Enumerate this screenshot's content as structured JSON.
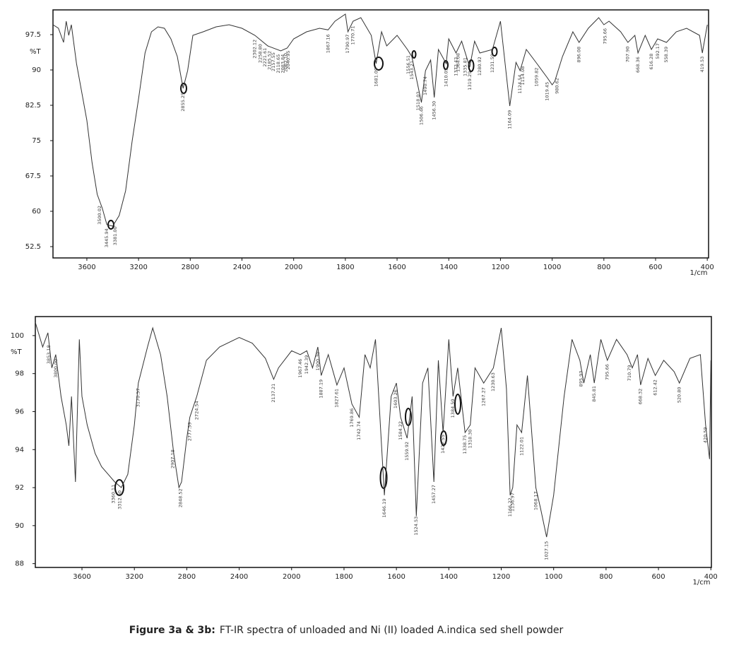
{
  "chart_data": [
    {
      "type": "line",
      "ylabel": "%T",
      "xlabel": "1/cm",
      "color": "#333333",
      "xlim": [
        3862,
        395
      ],
      "xticks": [
        3600,
        3200,
        2800,
        2400,
        2000,
        1800,
        1600,
        1400,
        1200,
        1000,
        800,
        600,
        400
      ],
      "ylim": [
        50.1,
        102.75
      ],
      "yticks": [
        52.5,
        60,
        67.5,
        75,
        82.5,
        90,
        97.5
      ],
      "x": [
        3862,
        3820,
        3780,
        3760,
        3740,
        3720,
        3680,
        3650,
        3600,
        3560,
        3520,
        3480,
        3445,
        3400,
        3350,
        3300,
        3250,
        3200,
        3150,
        3100,
        3050,
        3000,
        2950,
        2900,
        2855,
        2820,
        2780,
        2700,
        2600,
        2500,
        2400,
        2300,
        2200,
        2100,
        2050,
        2000,
        1950,
        1900,
        1867,
        1840,
        1800,
        1790,
        1770,
        1740,
        1700,
        1681,
        1660,
        1640,
        1600,
        1560,
        1543,
        1520,
        1506,
        1490,
        1470,
        1456,
        1440,
        1410,
        1400,
        1372,
        1350,
        1319,
        1300,
        1280,
        1231,
        1200,
        1185,
        1164,
        1140,
        1124,
        1100,
        1059,
        1019,
        1000,
        990,
        960,
        920,
        896,
        860,
        820,
        800,
        780,
        735,
        707,
        680,
        668,
        640,
        616,
        592,
        558,
        520,
        480,
        430,
        419,
        400
      ],
      "values": [
        99.6,
        98.85,
        95.85,
        100.35,
        97.35,
        99.6,
        91.35,
        86.85,
        79.35,
        70.35,
        63.6,
        60.6,
        57.15,
        56.85,
        59.1,
        64.35,
        74.85,
        83.85,
        93.6,
        98.1,
        99.15,
        98.85,
        96.6,
        92.85,
        86.1,
        89.85,
        97.35,
        98.1,
        99.15,
        99.6,
        98.85,
        97.35,
        95.1,
        94.05,
        94.65,
        96.6,
        98.1,
        98.85,
        98.5,
        100.35,
        101.85,
        98.1,
        100.35,
        101.1,
        97.35,
        91.35,
        98.1,
        95.1,
        97.35,
        94.35,
        92.85,
        86.85,
        83.1,
        89.85,
        92.1,
        84.15,
        94.35,
        91.35,
        96.6,
        93.6,
        96.1,
        90.6,
        96.1,
        93.6,
        94.35,
        100.35,
        92.85,
        82.35,
        91.6,
        89.85,
        94.35,
        91.35,
        88.35,
        86.85,
        87.6,
        92.85,
        98.1,
        95.85,
        98.85,
        101.1,
        99.6,
        100.35,
        98.1,
        95.85,
        97.35,
        93.6,
        97.35,
        94.35,
        96.6,
        95.85,
        98.1,
        98.85,
        97.35,
        93.6,
        99.6
      ],
      "peak_values": [
        3500.02,
        3445.94,
        3381.0,
        2855.25,
        2302.12,
        2258.8,
        2221.61,
        2185.52,
        2157.55,
        2118.65,
        2083.84,
        2062.1,
        2040.95,
        1867.16,
        1790.97,
        1770.71,
        1681.09,
        1556.51,
        1543.21,
        1518.03,
        1506.46,
        1490.74,
        1456.3,
        1410.05,
        1372.42,
        1364.08,
        1335.81,
        1319.29,
        1280.92,
        1231.59,
        1164.09,
        1124.54,
        1114.08,
        1059.82,
        1019.45,
        980.62,
        896.08,
        795.66,
        707.9,
        668.36,
        616.28,
        592.17,
        558.39,
        419.53
      ],
      "peak_labels": [
        "3500.02",
        "3445.94",
        "3381.00",
        "2855.25",
        "2302.12",
        "2258.80",
        "2221.61",
        "2185.52",
        "2157.55",
        "2118.65",
        "2083.84",
        "2062.10",
        "2040.95",
        "1867.16",
        "1790.97",
        "1770.71",
        "1681.09",
        "1556.51",
        "1543.21",
        "1518.03",
        "1506.46",
        "1490.74",
        "1456.30",
        "1410.05",
        "1372.42",
        "1364.08",
        "1335.81",
        "1319.29",
        "1280.92",
        "1231.59",
        "1164.09",
        "1124.54",
        "1114.08",
        "1059.82",
        "1019.45",
        "980.62",
        "896.08",
        "795.66",
        "707.90",
        "668.36",
        "616.28",
        "592.17",
        "558.39",
        "419.53"
      ]
    },
    {
      "type": "line",
      "ylabel": "%T",
      "xlabel": "1/cm",
      "color": "#333333",
      "xlim": [
        3956,
        398
      ],
      "xticks": [
        3600,
        3200,
        2800,
        2400,
        2000,
        1800,
        1600,
        1400,
        1200,
        1000,
        800,
        600,
        400
      ],
      "ylim": [
        87.8,
        101
      ],
      "yticks": [
        88,
        90,
        92,
        94,
        96,
        98,
        100
      ],
      "x": [
        3956,
        3900,
        3860,
        3830,
        3800,
        3760,
        3720,
        3700,
        3680,
        3650,
        3620,
        3600,
        3560,
        3500,
        3450,
        3400,
        3350,
        3300,
        3250,
        3200,
        3170,
        3100,
        3060,
        3000,
        2950,
        2900,
        2860,
        2840,
        2800,
        2777,
        2724,
        2650,
        2550,
        2400,
        2300,
        2200,
        2137,
        2100,
        2000,
        1967,
        1942,
        1920,
        1900,
        1887,
        1860,
        1827,
        1800,
        1770,
        1742,
        1720,
        1700,
        1680,
        1646,
        1620,
        1600,
        1584,
        1559,
        1540,
        1524,
        1500,
        1480,
        1457,
        1440,
        1422,
        1400,
        1384,
        1366,
        1338,
        1318,
        1300,
        1267,
        1230,
        1200,
        1180,
        1166,
        1156,
        1140,
        1122,
        1100,
        1068,
        1050,
        1027,
        1000,
        960,
        930,
        900,
        885,
        860,
        845,
        820,
        795,
        760,
        720,
        700,
        680,
        668,
        640,
        612,
        580,
        540,
        520,
        480,
        440,
        420,
        405,
        400
      ],
      "values": [
        100.7,
        99.4,
        100.15,
        98.3,
        99.0,
        96.8,
        95.3,
        94.2,
        96.8,
        92.3,
        99.8,
        96.8,
        95.3,
        93.8,
        93.1,
        92.7,
        92.3,
        92.0,
        92.7,
        95.3,
        97.5,
        99.4,
        100.4,
        99.0,
        96.8,
        93.8,
        92.0,
        92.3,
        94.6,
        95.7,
        96.8,
        98.7,
        99.4,
        99.9,
        99.6,
        98.8,
        97.7,
        98.3,
        99.2,
        99.0,
        99.2,
        98.3,
        99.4,
        97.9,
        99.0,
        97.4,
        98.3,
        96.4,
        95.7,
        99.0,
        98.3,
        99.8,
        91.6,
        96.8,
        97.5,
        95.7,
        94.6,
        96.8,
        90.5,
        97.5,
        98.3,
        92.3,
        98.7,
        94.9,
        99.8,
        96.8,
        98.3,
        94.9,
        95.3,
        98.3,
        97.5,
        98.3,
        100.4,
        97.2,
        91.6,
        92.0,
        95.3,
        94.9,
        97.9,
        92.0,
        90.9,
        89.4,
        91.6,
        96.8,
        99.8,
        98.7,
        97.5,
        99.0,
        97.5,
        99.8,
        98.7,
        99.8,
        99.0,
        98.3,
        99.0,
        97.4,
        98.8,
        97.9,
        98.7,
        98.1,
        97.5,
        98.8,
        99.0,
        95.3,
        93.5,
        98.7
      ],
      "peak_values": [
        3853.18,
        3800.0,
        3360.11,
        3312.6,
        3170.57,
        2907.18,
        2848.52,
        2777.59,
        2724.54,
        2137.21,
        1967.46,
        1942.39,
        1900.3,
        1887.19,
        1827.61,
        1769.86,
        1742.74,
        1646.19,
        1603.26,
        1584.22,
        1559.92,
        1524.53,
        1457.27,
        1422.55,
        1384.5,
        1338.75,
        1318.3,
        1267.27,
        1230.63,
        1166.22,
        1156.97,
        1122.01,
        1068.17,
        1027.15,
        895.93,
        845.81,
        795.66,
        710.79,
        668.32,
        612.42,
        520.8,
        420.59
      ],
      "peak_labels": [
        "3853.18",
        "3800.00",
        "3360.11",
        "3312.60",
        "3170.57",
        "2907.18",
        "2848.52",
        "2777.59",
        "2724.54",
        "2137.21",
        "1967.46",
        "1942.39",
        "1900.30",
        "1887.19",
        "1827.61",
        "1769.86",
        "1742.74",
        "1646.19",
        "1603.26",
        "1584.22",
        "1559.92",
        "1524.53",
        "1457.27",
        "1422.55",
        "1384.50",
        "1338.75",
        "1318.30",
        "1267.27",
        "1230.63",
        "1166.22",
        "1156.97",
        "1122.01",
        "1068.17",
        "1027.15",
        "895.93",
        "845.81",
        "795.66",
        "710.79",
        "668.32",
        "612.42",
        "520.80",
        "420.59"
      ]
    }
  ],
  "caption": {
    "label": "Figure 3a & 3b:",
    "text": "FT-IR spectra of unloaded and Ni (II) loaded A.indica sed shell powder"
  }
}
